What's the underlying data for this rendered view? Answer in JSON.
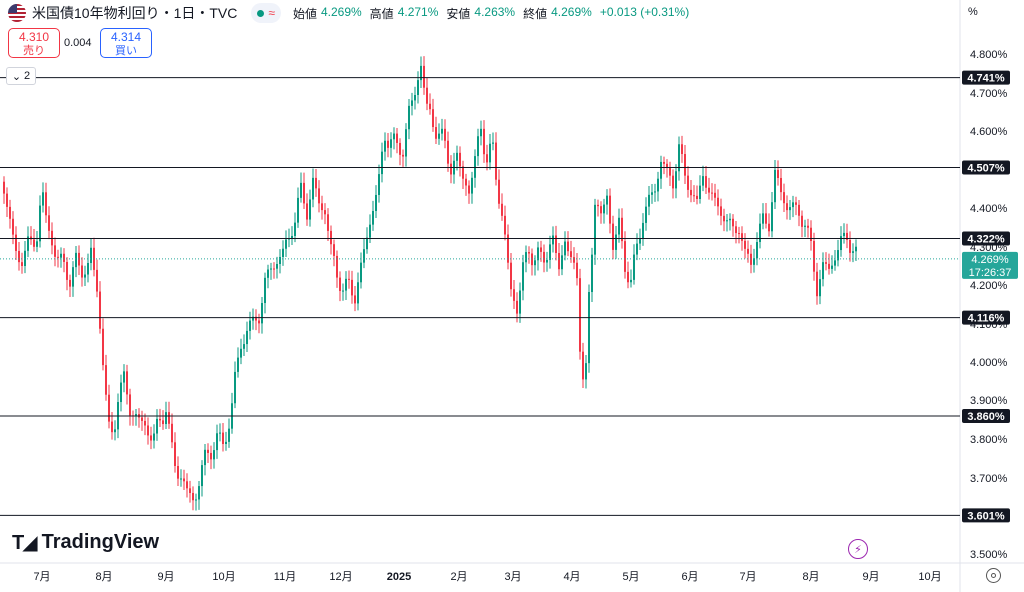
{
  "header": {
    "title": "米国債10年物利回り・1日・TVC",
    "approx": "≈",
    "ohlc": [
      {
        "label": "始値",
        "value": "4.269%"
      },
      {
        "label": "高値",
        "value": "4.271%"
      },
      {
        "label": "安値",
        "value": "4.263%"
      },
      {
        "label": "終値",
        "value": "4.269%"
      }
    ],
    "change": "+0.013 (+0.31%)"
  },
  "trade": {
    "sell_price": "4.310",
    "sell_label": "売り",
    "buy_price": "4.314",
    "buy_label": "買い",
    "spread": "0.004"
  },
  "collapse_label": "2",
  "percent_label": "%",
  "brand": "TradingView",
  "colors": {
    "up": "#089981",
    "down": "#f23645",
    "line": "#131722",
    "current": "#26a69a"
  },
  "chart_data": {
    "type": "candlestick",
    "x_ticks": [
      "7月",
      "8月",
      "9月",
      "10月",
      "11月",
      "12月",
      "2025",
      "2月",
      "3月",
      "4月",
      "5月",
      "6月",
      "7月",
      "8月",
      "9月",
      "10月"
    ],
    "y_ticks": [
      "4.800%",
      "4.700%",
      "4.600%",
      "4.500%",
      "4.400%",
      "4.300%",
      "4.200%",
      "4.100%",
      "4.000%",
      "3.900%",
      "3.800%",
      "3.700%",
      "3.500%"
    ],
    "ylim": [
      3.48,
      4.86
    ],
    "horizontal_lines": [
      {
        "value": 4.741,
        "label": "4.741%"
      },
      {
        "value": 4.507,
        "label": "4.507%"
      },
      {
        "value": 4.322,
        "label": "4.322%"
      },
      {
        "value": 4.116,
        "label": "4.116%"
      },
      {
        "value": 3.86,
        "label": "3.860%"
      },
      {
        "value": 3.601,
        "label": "3.601%"
      }
    ],
    "current": {
      "value": 4.269,
      "label": "4.269%",
      "countdown": "17:26:37"
    },
    "path": [
      [
        0,
        4.47
      ],
      [
        8,
        4.4
      ],
      [
        14,
        4.27
      ],
      [
        22,
        4.28
      ],
      [
        30,
        4.31
      ],
      [
        36,
        4.33
      ],
      [
        41,
        4.45
      ],
      [
        46,
        4.36
      ],
      [
        52,
        4.3
      ],
      [
        58,
        4.27
      ],
      [
        64,
        4.24
      ],
      [
        70,
        4.22
      ],
      [
        74,
        4.26
      ],
      [
        80,
        4.24
      ],
      [
        86,
        4.24
      ],
      [
        90,
        4.29
      ],
      [
        96,
        4.18
      ],
      [
        102,
        4.01
      ],
      [
        108,
        3.82
      ],
      [
        112,
        3.8
      ],
      [
        117,
        3.92
      ],
      [
        123,
        3.95
      ],
      [
        129,
        3.88
      ],
      [
        135,
        3.86
      ],
      [
        141,
        3.84
      ],
      [
        147,
        3.82
      ],
      [
        153,
        3.81
      ],
      [
        159,
        3.84
      ],
      [
        165,
        3.89
      ],
      [
        170,
        3.78
      ],
      [
        175,
        3.72
      ],
      [
        181,
        3.7
      ],
      [
        187,
        3.66
      ],
      [
        193,
        3.63
      ],
      [
        199,
        3.71
      ],
      [
        205,
        3.75
      ],
      [
        211,
        3.78
      ],
      [
        217,
        3.8
      ],
      [
        223,
        3.79
      ],
      [
        229,
        3.84
      ],
      [
        234,
        3.97
      ],
      [
        240,
        4.03
      ],
      [
        246,
        4.1
      ],
      [
        252,
        4.09
      ],
      [
        258,
        4.13
      ],
      [
        264,
        4.2
      ],
      [
        270,
        4.25
      ],
      [
        276,
        4.26
      ],
      [
        282,
        4.29
      ],
      [
        288,
        4.32
      ],
      [
        294,
        4.38
      ],
      [
        300,
        4.44
      ],
      [
        306,
        4.4
      ],
      [
        312,
        4.46
      ],
      [
        318,
        4.42
      ],
      [
        324,
        4.39
      ],
      [
        330,
        4.3
      ],
      [
        336,
        4.22
      ],
      [
        342,
        4.2
      ],
      [
        348,
        4.19
      ],
      [
        354,
        4.18
      ],
      [
        360,
        4.24
      ],
      [
        366,
        4.33
      ],
      [
        372,
        4.4
      ],
      [
        378,
        4.48
      ],
      [
        384,
        4.58
      ],
      [
        390,
        4.59
      ],
      [
        396,
        4.55
      ],
      [
        402,
        4.56
      ],
      [
        408,
        4.65
      ],
      [
        414,
        4.7
      ],
      [
        420,
        4.78
      ],
      [
        426,
        4.66
      ],
      [
        432,
        4.62
      ],
      [
        438,
        4.6
      ],
      [
        444,
        4.56
      ],
      [
        450,
        4.51
      ],
      [
        456,
        4.53
      ],
      [
        462,
        4.48
      ],
      [
        468,
        4.45
      ],
      [
        474,
        4.52
      ],
      [
        480,
        4.62
      ],
      [
        486,
        4.52
      ],
      [
        492,
        4.56
      ],
      [
        498,
        4.43
      ],
      [
        504,
        4.32
      ],
      [
        510,
        4.19
      ],
      [
        516,
        4.14
      ],
      [
        522,
        4.24
      ],
      [
        528,
        4.3
      ],
      [
        534,
        4.26
      ],
      [
        540,
        4.28
      ],
      [
        546,
        4.28
      ],
      [
        552,
        4.32
      ],
      [
        558,
        4.24
      ],
      [
        564,
        4.33
      ],
      [
        570,
        4.25
      ],
      [
        576,
        4.24
      ],
      [
        580,
        3.99
      ],
      [
        584,
        3.9
      ],
      [
        588,
        4.18
      ],
      [
        594,
        4.42
      ],
      [
        600,
        4.38
      ],
      [
        606,
        4.43
      ],
      [
        612,
        4.31
      ],
      [
        618,
        4.35
      ],
      [
        624,
        4.26
      ],
      [
        630,
        4.2
      ],
      [
        636,
        4.31
      ],
      [
        642,
        4.37
      ],
      [
        648,
        4.43
      ],
      [
        654,
        4.44
      ],
      [
        660,
        4.54
      ],
      [
        666,
        4.48
      ],
      [
        672,
        4.48
      ],
      [
        678,
        4.55
      ],
      [
        684,
        4.49
      ],
      [
        690,
        4.44
      ],
      [
        696,
        4.42
      ],
      [
        702,
        4.48
      ],
      [
        708,
        4.46
      ],
      [
        714,
        4.4
      ],
      [
        720,
        4.41
      ],
      [
        726,
        4.35
      ],
      [
        732,
        4.36
      ],
      [
        738,
        4.34
      ],
      [
        744,
        4.29
      ],
      [
        750,
        4.25
      ],
      [
        756,
        4.33
      ],
      [
        762,
        4.36
      ],
      [
        768,
        4.37
      ],
      [
        774,
        4.48
      ],
      [
        780,
        4.45
      ],
      [
        786,
        4.4
      ],
      [
        792,
        4.41
      ],
      [
        798,
        4.38
      ],
      [
        804,
        4.37
      ],
      [
        810,
        4.29
      ],
      [
        816,
        4.2
      ],
      [
        822,
        4.24
      ],
      [
        828,
        4.25
      ],
      [
        834,
        4.27
      ],
      [
        840,
        4.32
      ],
      [
        846,
        4.32
      ],
      [
        852,
        4.3
      ],
      [
        856,
        4.269
      ]
    ]
  }
}
